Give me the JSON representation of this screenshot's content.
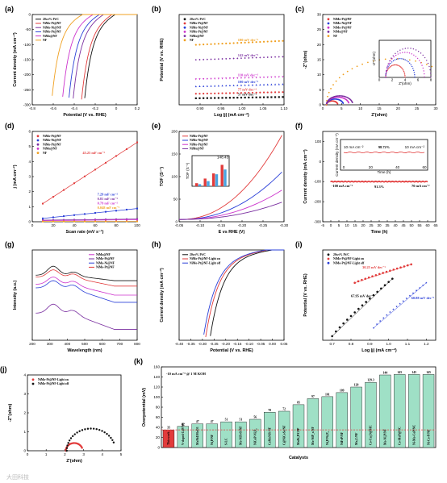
{
  "watermark": "大田科技",
  "colors": {
    "black": "#111111",
    "red": "#e23b3b",
    "blue": "#2a3fd8",
    "magenta": "#cc33cc",
    "purple": "#7a2fa0",
    "orange": "#f0a020",
    "teal": "#9fe0c6"
  },
  "chart_data": [
    {
      "id": "a",
      "panel_label": "(a)",
      "type": "line",
      "xlabel": "Potential (V vs. RHE)",
      "ylabel": "Current density (mA cm⁻²)",
      "xlim": [
        -0.8,
        0.2
      ],
      "ylim": [
        -300,
        0
      ],
      "xticks": [
        -0.8,
        -0.6,
        -0.4,
        -0.2,
        0.0,
        0.2
      ],
      "yticks": [
        -300,
        -250,
        -200,
        -150,
        -100,
        -50,
        0
      ],
      "legend_position": "top-left",
      "series": [
        {
          "name": "20wt% Pt/C",
          "color": "#111111",
          "onset": -0.01,
          "scale": 0.33
        },
        {
          "name": "NiMo-Pt@NF",
          "color": "#e23b3b",
          "onset": -0.04,
          "scale": 0.36
        },
        {
          "name": "NiMo-Ni@NF",
          "color": "#7a2fa0",
          "onset": -0.12,
          "scale": 0.34
        },
        {
          "name": "NiMo-Pt@NF",
          "color": "#2a3fd8",
          "onset": -0.16,
          "scale": 0.32
        },
        {
          "name": "NiMo@NF",
          "color": "#cc33cc",
          "onset": -0.22,
          "scale": 0.3
        },
        {
          "name": "NF",
          "color": "#f0a020",
          "onset": -0.32,
          "scale": 0.28
        }
      ]
    },
    {
      "id": "b",
      "panel_label": "(b)",
      "type": "scatter",
      "xlabel": "Log |j| (mA cm⁻²)",
      "ylabel": "Potential (V vs. RHE)",
      "xlim": [
        0.85,
        1.1
      ],
      "ylim": [
        0.0,
        0.3
      ],
      "xticks": [
        0.9,
        0.95,
        1.0,
        1.05,
        1.1
      ],
      "xticklabels": [
        "0.90",
        "0.95",
        "1.00",
        "1.05",
        "1.10"
      ],
      "legend_position": "top-left",
      "series": [
        {
          "name": "20wt% Pt/C",
          "color": "#111111",
          "y0": 0.022,
          "slope": 0.057,
          "annotation": "57 mV dec⁻¹",
          "marker": "square"
        },
        {
          "name": "NiMo-Pt@NF",
          "color": "#e23b3b",
          "y0": 0.037,
          "slope": 0.077,
          "annotation": "77 mV dec⁻¹",
          "marker": "circle"
        },
        {
          "name": "NiMo-Ni@NF",
          "color": "#2a3fd8",
          "y0": 0.062,
          "slope": 0.1,
          "annotation": "100 mV dec⁻¹",
          "marker": "triangle"
        },
        {
          "name": "NiMo-Pt@NF",
          "color": "#cc33cc",
          "y0": 0.085,
          "slope": 0.11,
          "annotation": "110 mV dec⁻¹",
          "marker": "tridown"
        },
        {
          "name": "NiMo@NF",
          "color": "#7a2fa0",
          "y0": 0.15,
          "slope": 0.142,
          "annotation": "142 mV dec⁻¹",
          "marker": "diamond"
        },
        {
          "name": "NF",
          "color": "#f0a020",
          "y0": 0.2,
          "slope": 0.18,
          "annotation": "180 mV dec⁻¹",
          "marker": "hex"
        }
      ]
    },
    {
      "id": "c",
      "panel_label": "(c)",
      "type": "scatter",
      "xlabel": "Z'(ohm)",
      "ylabel": "-Z''(ohm)",
      "xlim": [
        0,
        30
      ],
      "ylim": [
        0,
        30
      ],
      "xticks": [
        0,
        5,
        10,
        15,
        20,
        25,
        30
      ],
      "yticks": [
        0,
        5,
        10,
        15,
        20,
        25,
        30
      ],
      "legend_position": "top-left",
      "series": [
        {
          "name": "NiMo-Pt@NF",
          "color": "#e23b3b",
          "r0": 1.0,
          "diam": 3.0
        },
        {
          "name": "NiMo-Ni@NF",
          "color": "#2a3fd8",
          "r0": 1.0,
          "diam": 4.5
        },
        {
          "name": "NiMo-Pt@NF",
          "color": "#cc33cc",
          "r0": 1.0,
          "diam": 6.0
        },
        {
          "name": "NiMo@NF",
          "color": "#7a2fa0",
          "r0": 1.0,
          "diam": 7.0
        },
        {
          "name": "NF",
          "color": "#f0a020",
          "r0": 1.0,
          "diam": 36.0
        }
      ],
      "inset": {
        "xlabel": "Z'(ohm)",
        "ylabel": "-Z''(ohm)",
        "xlim": [
          0,
          8
        ],
        "ylim": [
          0,
          4
        ],
        "xticks": [
          0,
          2,
          4,
          6,
          8
        ]
      }
    },
    {
      "id": "d",
      "panel_label": "(d)",
      "type": "scatter",
      "xlabel": "Scan rate (mV s⁻¹)",
      "ylabel": "j (mA cm⁻²)",
      "xlim": [
        0,
        100
      ],
      "ylim": [
        0,
        6
      ],
      "xticks": [
        0,
        20,
        40,
        60,
        80,
        100
      ],
      "yticks": [
        0,
        1,
        2,
        3,
        4,
        5,
        6
      ],
      "x": [
        10,
        20,
        30,
        40,
        50,
        60,
        70,
        80,
        90,
        100
      ],
      "legend_position": "top-left",
      "series": [
        {
          "name": "NiMo-Pt@NF",
          "color": "#e23b3b",
          "intercept": 0.75,
          "slope_mF": 45.25,
          "annotation": "45.25 mF cm⁻²"
        },
        {
          "name": "NiMo-Ni@NF",
          "color": "#2a3fd8",
          "intercept": 0.15,
          "slope_mF": 7.29,
          "annotation": "7.29 mF cm⁻²"
        },
        {
          "name": "NiMo-Pt@NF",
          "color": "#7a2fa0",
          "intercept": 0.1,
          "slope_mF": 0.81,
          "annotation": "0.81 mF cm⁻²"
        },
        {
          "name": "NiMo@NF",
          "color": "#cc33cc",
          "intercept": 0.06,
          "slope_mF": 0.79,
          "annotation": "0.79 mF cm⁻²"
        },
        {
          "name": "NF",
          "color": "#f0a020",
          "intercept": 0.02,
          "slope_mF": 0.048,
          "annotation": "0.048 mF cm⁻²"
        }
      ]
    },
    {
      "id": "e",
      "panel_label": "(e)",
      "type": "line",
      "xlabel": "E vs RHE (V)",
      "ylabel": "TOF (S⁻¹)",
      "xlim": [
        -0.05,
        -0.3
      ],
      "ylim": [
        0,
        200
      ],
      "xticks": [
        -0.05,
        -0.1,
        -0.15,
        -0.2,
        -0.25,
        -0.3
      ],
      "xticklabels": [
        "-0.05",
        "-0.10",
        "-0.15",
        "-0.20",
        "-0.25",
        "-0.30"
      ],
      "yticks": [
        0,
        50,
        100,
        150,
        200
      ],
      "legend_position": "top-left",
      "series": [
        {
          "name": "NiMo-Pt@NF",
          "color": "#e23b3b",
          "end": 195
        },
        {
          "name": "NiMo-Ni@NF",
          "color": "#2a3fd8",
          "end": 110
        },
        {
          "name": "NiMo-Pt@NF",
          "color": "#cc33cc",
          "end": 68
        },
        {
          "name": "NiMo@NF",
          "color": "#7a2fa0",
          "end": 40
        }
      ],
      "inset": {
        "ylabel": "TOF (S⁻¹)",
        "groups": 4,
        "bars_per_group": [
          [
            18,
            12
          ],
          [
            45,
            30
          ],
          [
            75,
            70
          ],
          [
            125,
            98
          ]
        ],
        "top_label": "148.43"
      }
    },
    {
      "id": "f",
      "panel_label": "(f)",
      "type": "line",
      "xlabel": "Time (h)",
      "ylabel": "Current density (mA cm⁻²)",
      "xlim": [
        -5,
        65
      ],
      "ylim": [
        -300,
        150
      ],
      "xticks": [
        -5,
        0,
        5,
        10,
        15,
        20,
        25,
        30,
        35,
        40,
        45,
        50,
        55,
        60,
        65
      ],
      "yticks": [
        -300,
        -200,
        -100,
        0,
        100
      ],
      "level": -100,
      "annotations": [
        "-100 mA cm⁻²",
        "91.3%",
        "70 mA cm⁻²"
      ],
      "inset": {
        "xlabel": "Time (h)",
        "ylabel": "Current density (mA cm⁻²)",
        "level_label": "98.72%",
        "left_label": "10 mA cm⁻²",
        "right_label": "10 mA cm⁻²",
        "xticks": [
          "0",
          "20",
          "40",
          "60"
        ]
      }
    },
    {
      "id": "g",
      "panel_label": "(g)",
      "type": "line",
      "xlabel": "Wavelength (nm)",
      "ylabel": "Intensity (a.u.)",
      "xlim": [
        200,
        800
      ],
      "ylim": [
        0,
        1
      ],
      "xticks": [
        200,
        300,
        400,
        500,
        600,
        700,
        800
      ],
      "legend_position": "top-right",
      "series": [
        {
          "name": "NiMo@NF",
          "color": "#cc33cc"
        },
        {
          "name": "NiMo-Pt@NF",
          "color": "#7a2fa0"
        },
        {
          "name": "NiMo-Ni@NF",
          "color": "#2a3fd8"
        },
        {
          "name": "NiMo-Pt@NF",
          "color": "#e23b3b"
        },
        {
          "name": "",
          "color": "#111111"
        }
      ]
    },
    {
      "id": "h",
      "panel_label": "(h)",
      "type": "line",
      "xlabel": "Potential (V vs. RHE)",
      "ylabel": "Current density (mA cm⁻²)",
      "xlim": [
        -0.4,
        0.05
      ],
      "ylim": [
        -300,
        0
      ],
      "xticks": [
        -0.4,
        -0.35,
        -0.3,
        -0.25,
        -0.2,
        -0.15,
        -0.1,
        -0.05,
        0.0,
        0.05
      ],
      "xticklabels": [
        "-0.40",
        "-0.35",
        "-0.30",
        "-0.25",
        "-0.20",
        "-0.15",
        "-0.10",
        "-0.05",
        "0.00",
        "0.05"
      ],
      "legend_position": "top-left",
      "series": [
        {
          "name": "20wt% Pt/C",
          "color": "#111111",
          "onset": 0.0,
          "scale": 0.3
        },
        {
          "name": "NiMo-Pt@NF-Light on",
          "color": "#e23b3b",
          "onset": -0.02,
          "scale": 0.34
        },
        {
          "name": "NiMo-Pt@NF-Light off",
          "color": "#2a3fd8",
          "onset": -0.03,
          "scale": 0.36
        }
      ]
    },
    {
      "id": "i",
      "panel_label": "(i)",
      "type": "scatter",
      "xlabel": "Log |j| (mA cm⁻²)",
      "ylabel": "Potential (V vs. RHE)",
      "xlim": [
        0.65,
        1.25
      ],
      "ylim": [
        0.0,
        0.22
      ],
      "xticks": [
        0.7,
        0.8,
        0.9,
        1.0,
        1.1,
        1.2
      ],
      "xticklabels": [
        "0.7",
        "0.8",
        "0.9",
        "1.0",
        "1.1",
        "1.2"
      ],
      "legend_position": "top-left",
      "series": [
        {
          "name": "20wt% Pt/C",
          "color": "#111111",
          "x": [
            0.7,
            1.02
          ],
          "y": [
            0.01,
            0.15
          ],
          "annotation": "67.95 mV dec⁻¹",
          "marker": "circle"
        },
        {
          "name": "NiMo-Pt@NF-Light on",
          "color": "#e23b3b",
          "x": [
            0.82,
            1.12
          ],
          "y": [
            0.14,
            0.185
          ],
          "annotation": "30.25 mV dec⁻¹",
          "marker": "circle"
        },
        {
          "name": "NiMo-Pt@NF-Light off",
          "color": "#2a3fd8",
          "x": [
            0.92,
            1.2
          ],
          "y": [
            0.03,
            0.14
          ],
          "annotation": "60.88 mV dec⁻¹",
          "marker": "star"
        }
      ]
    },
    {
      "id": "j",
      "panel_label": "(j)",
      "type": "scatter",
      "xlabel": "Z'(ohm)",
      "ylabel": "-Z''(ohm)",
      "xlim": [
        0,
        5
      ],
      "ylim": [
        0,
        4
      ],
      "xticks": [
        0,
        1,
        2,
        3,
        4,
        5
      ],
      "yticks": [
        0,
        1,
        2,
        3,
        4
      ],
      "legend_position": "top-left",
      "series": [
        {
          "name": "NiMo-Pt@NF-Light on",
          "color": "#e23b3b",
          "r0": 2.05,
          "diam": 0.9
        },
        {
          "name": "NiMo-Pt@NF-Light off",
          "color": "#111111",
          "r0": 2.1,
          "diam": 2.6
        }
      ]
    },
    {
      "id": "k",
      "panel_label": "(k)",
      "type": "bar",
      "xlabel": "Catalysts",
      "ylabel": "Overpotential (mV)",
      "title": "-10 mA cm⁻² @ 1 M KOH",
      "ylim": [
        0,
        160
      ],
      "yticks": [
        0,
        20,
        40,
        60,
        80,
        100,
        120,
        140,
        160
      ],
      "reference_line": 35,
      "categories": [
        "This work",
        "V-doped CoP/NF",
        "MoNi4/MoO3",
        "Ni₂P/NF",
        "S-LC",
        "Mo-NiFeO/NF",
        "NiCoP-Ni₅P₄",
        "CoMoNiS-NF",
        "C@NiCoSe/NF",
        "MnNi₂P/CPP",
        "Mo-NiP_x/NF",
        "Ni₂P/Ni₅P₄",
        "NiFeP/NF",
        "Mo₂C/NF",
        "Co-Cu₂O@MC",
        "Mo-Ni₂P/NF",
        "Co-MoP@NC",
        "Ni-Mo-CoP/NC",
        "Ni-Co-P/NF"
      ],
      "values": [
        35,
        42,
        47,
        47,
        51,
        51,
        56,
        70,
        72,
        85,
        97,
        101,
        109,
        120,
        129.3,
        144,
        145,
        145,
        145
      ],
      "value_labels": [
        "35",
        "42",
        "47",
        "47",
        "51",
        "51",
        "56",
        "70",
        "72",
        "85",
        "97",
        "101",
        "109",
        "120",
        "129.3",
        "144",
        "145",
        "145",
        "145"
      ],
      "bar_colors": {
        "highlight": "#e23b3b",
        "default": "#9fe0c6"
      }
    }
  ]
}
